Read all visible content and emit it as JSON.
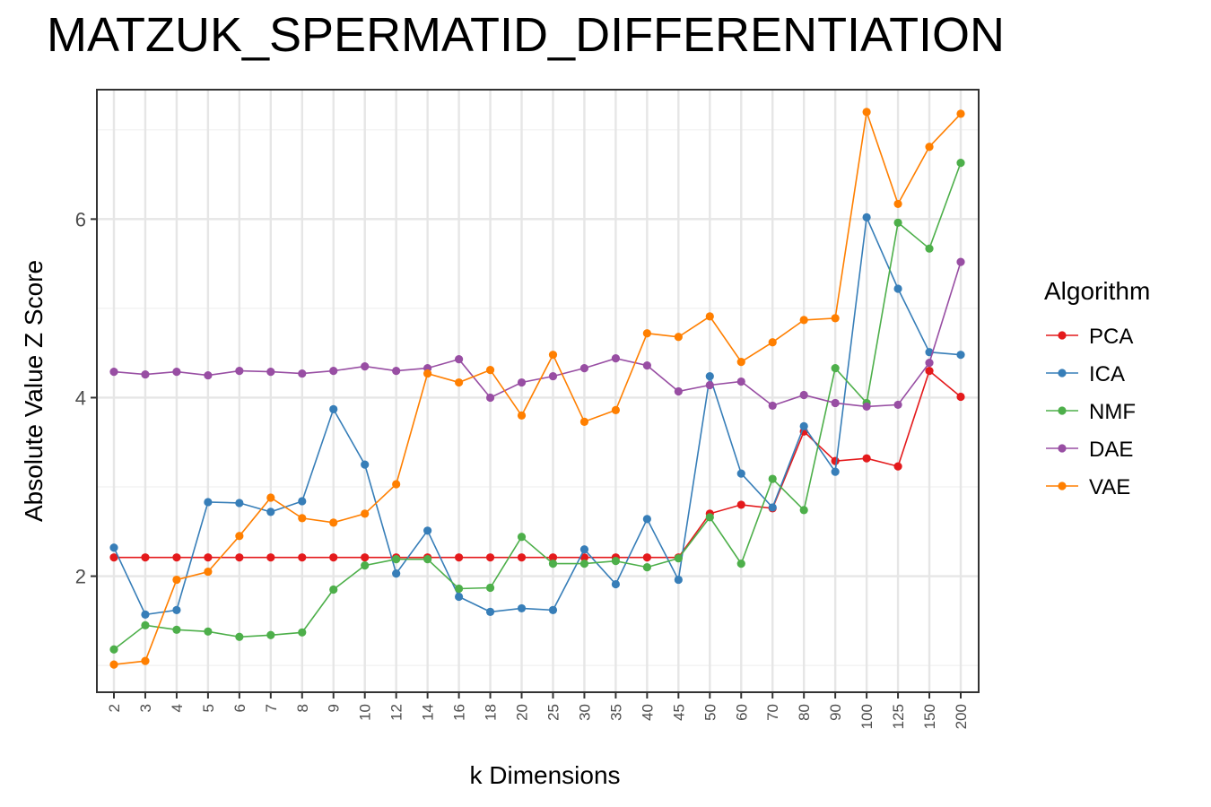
{
  "chart_data": {
    "type": "line",
    "title": "MATZUK_SPERMATID_DIFFERENTIATION",
    "xlabel": "k Dimensions",
    "ylabel": "Absolute Value Z Score",
    "categories": [
      "2",
      "3",
      "4",
      "5",
      "6",
      "7",
      "8",
      "9",
      "10",
      "12",
      "14",
      "16",
      "18",
      "20",
      "25",
      "30",
      "35",
      "40",
      "45",
      "50",
      "60",
      "70",
      "80",
      "90",
      "100",
      "125",
      "150",
      "200"
    ],
    "ylim": [
      0.7,
      7.45
    ],
    "yticks": [
      2,
      4,
      6
    ],
    "grid": true,
    "legend": {
      "title": "Algorithm",
      "placement": "right"
    },
    "series": [
      {
        "name": "PCA",
        "color": "#e41a1c",
        "values": [
          2.21,
          2.21,
          2.21,
          2.21,
          2.21,
          2.21,
          2.21,
          2.21,
          2.21,
          2.21,
          2.21,
          2.21,
          2.21,
          2.21,
          2.21,
          2.21,
          2.21,
          2.21,
          2.21,
          2.7,
          2.8,
          2.76,
          3.62,
          3.29,
          3.32,
          3.23,
          4.3,
          4.01
        ]
      },
      {
        "name": "ICA",
        "color": "#377eb8",
        "values": [
          2.32,
          1.57,
          1.62,
          2.83,
          2.82,
          2.72,
          2.84,
          3.87,
          3.25,
          2.03,
          2.51,
          1.77,
          1.6,
          1.64,
          1.62,
          2.3,
          1.91,
          2.64,
          1.96,
          4.24,
          3.15,
          2.77,
          3.68,
          3.17,
          6.02,
          5.22,
          4.51,
          4.48
        ]
      },
      {
        "name": "NMF",
        "color": "#4daf4a",
        "values": [
          1.18,
          1.45,
          1.4,
          1.38,
          1.32,
          1.34,
          1.37,
          1.85,
          2.12,
          2.19,
          2.19,
          1.86,
          1.87,
          2.44,
          2.14,
          2.14,
          2.17,
          2.1,
          2.2,
          2.66,
          2.14,
          3.09,
          2.74,
          4.33,
          3.94,
          5.96,
          5.67,
          6.63
        ]
      },
      {
        "name": "DAE",
        "color": "#984ea3",
        "values": [
          4.29,
          4.26,
          4.29,
          4.25,
          4.3,
          4.29,
          4.27,
          4.3,
          4.35,
          4.3,
          4.33,
          4.43,
          4.0,
          4.17,
          4.24,
          4.33,
          4.44,
          4.36,
          4.07,
          4.14,
          4.18,
          3.91,
          4.03,
          3.94,
          3.9,
          3.92,
          4.39,
          5.52
        ]
      },
      {
        "name": "VAE",
        "color": "#ff7f00",
        "values": [
          1.01,
          1.05,
          1.96,
          2.05,
          2.45,
          2.88,
          2.65,
          2.6,
          2.7,
          3.03,
          4.27,
          4.17,
          4.31,
          3.8,
          4.48,
          3.73,
          3.86,
          4.72,
          4.68,
          4.91,
          4.4,
          4.62,
          4.87,
          4.89,
          7.2,
          6.17,
          6.81,
          7.18
        ]
      }
    ]
  }
}
